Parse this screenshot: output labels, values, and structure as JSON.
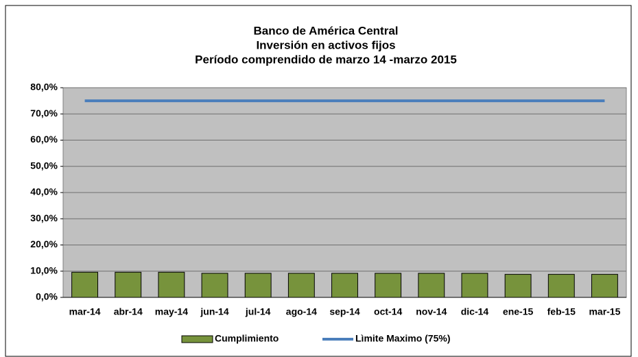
{
  "chart_data": {
    "type": "bar",
    "title": [
      "Banco de América Central",
      "Inversión en activos fijos",
      "Período comprendido de marzo 14 -marzo 2015"
    ],
    "categories": [
      "mar-14",
      "abr-14",
      "may-14",
      "jun-14",
      "jul-14",
      "ago-14",
      "sep-14",
      "oct-14",
      "nov-14",
      "dic-14",
      "ene-15",
      "feb-15",
      "mar-15"
    ],
    "series": [
      {
        "name": "Cumplimiento",
        "type": "bar",
        "color": "#77933c",
        "values": [
          9.6,
          9.6,
          9.6,
          9.2,
          9.2,
          9.2,
          9.2,
          9.2,
          9.2,
          9.2,
          8.8,
          8.8,
          8.8
        ]
      },
      {
        "name": "Lìmite Maximo (75%)",
        "type": "line",
        "color": "#4a7ebb",
        "values": [
          75,
          75,
          75,
          75,
          75,
          75,
          75,
          75,
          75,
          75,
          75,
          75,
          75
        ]
      }
    ],
    "ylim": [
      0,
      80
    ],
    "yticks": [
      {
        "value": 0,
        "label": "0,0%"
      },
      {
        "value": 10,
        "label": "10,0%"
      },
      {
        "value": 20,
        "label": "20,0%"
      },
      {
        "value": 30,
        "label": "30,0%"
      },
      {
        "value": 40,
        "label": "40,0%"
      },
      {
        "value": 50,
        "label": "50,0%"
      },
      {
        "value": 60,
        "label": "60,0%"
      },
      {
        "value": 70,
        "label": "70,0%"
      },
      {
        "value": 80,
        "label": "80,0%"
      }
    ],
    "grid": true,
    "legend": "bottom"
  }
}
